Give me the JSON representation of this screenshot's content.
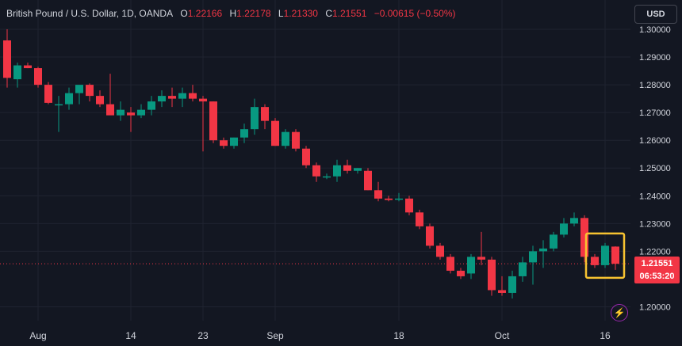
{
  "legend": {
    "symbol": "British Pound / U.S. Dollar, 1D, OANDA",
    "open_label": "O",
    "open": "1.22166",
    "high_label": "H",
    "high": "1.22178",
    "low_label": "L",
    "low": "1.21330",
    "close_label": "C",
    "close": "1.21551",
    "change": "−0.00615 (−0.50%)"
  },
  "currency_button": "USD",
  "price_tag": {
    "price": "1.21551",
    "countdown": "06:53:20"
  },
  "colors": {
    "up": "#089981",
    "down": "#f23645",
    "highlight": "#f7c331",
    "background": "#131722",
    "grid": "#1f2330"
  },
  "icons": {
    "alerts": "lightning-bolt-icon"
  },
  "chart_data": {
    "type": "candlestick",
    "title": "British Pound / U.S. Dollar, 1D, OANDA",
    "ylim": [
      1.195,
      1.302
    ],
    "y_ticks": [
      "1.30000",
      "1.29000",
      "1.28000",
      "1.27000",
      "1.26000",
      "1.25000",
      "1.24000",
      "1.23000",
      "1.22000",
      "1.20000"
    ],
    "x_ticks": [
      {
        "label": "Aug",
        "index": 3
      },
      {
        "label": "14",
        "index": 12
      },
      {
        "label": "23",
        "index": 19
      },
      {
        "label": "Sep",
        "index": 26
      },
      {
        "label": "18",
        "index": 38
      },
      {
        "label": "Oct",
        "index": 48
      },
      {
        "label": "16",
        "index": 58
      }
    ],
    "last_price": 1.21551,
    "highlight_range": [
      57,
      59
    ],
    "candles": [
      [
        1.296,
        1.3,
        1.279,
        1.2825
      ],
      [
        1.282,
        1.288,
        1.279,
        1.287
      ],
      [
        1.287,
        1.288,
        1.286,
        1.286
      ],
      [
        1.286,
        1.2865,
        1.279,
        1.28
      ],
      [
        1.28,
        1.281,
        1.273,
        1.2735
      ],
      [
        1.273,
        1.276,
        1.263,
        1.273
      ],
      [
        1.273,
        1.279,
        1.271,
        1.277
      ],
      [
        1.277,
        1.279,
        1.273,
        1.28
      ],
      [
        1.28,
        1.2805,
        1.274,
        1.276
      ],
      [
        1.276,
        1.278,
        1.272,
        1.273
      ],
      [
        1.273,
        1.284,
        1.27,
        1.269
      ],
      [
        1.269,
        1.274,
        1.267,
        1.271
      ],
      [
        1.27,
        1.272,
        1.263,
        1.269
      ],
      [
        1.269,
        1.273,
        1.268,
        1.271
      ],
      [
        1.271,
        1.276,
        1.269,
        1.274
      ],
      [
        1.274,
        1.278,
        1.272,
        1.276
      ],
      [
        1.276,
        1.279,
        1.272,
        1.275
      ],
      [
        1.275,
        1.279,
        1.272,
        1.277
      ],
      [
        1.277,
        1.28,
        1.274,
        1.275
      ],
      [
        1.275,
        1.276,
        1.256,
        1.274
      ],
      [
        1.274,
        1.274,
        1.259,
        1.26
      ],
      [
        1.26,
        1.261,
        1.257,
        1.258
      ],
      [
        1.258,
        1.261,
        1.257,
        1.261
      ],
      [
        1.261,
        1.266,
        1.259,
        1.264
      ],
      [
        1.264,
        1.275,
        1.262,
        1.272
      ],
      [
        1.272,
        1.273,
        1.264,
        1.267
      ],
      [
        1.267,
        1.268,
        1.258,
        1.258
      ],
      [
        1.258,
        1.264,
        1.257,
        1.263
      ],
      [
        1.263,
        1.264,
        1.256,
        1.257
      ],
      [
        1.257,
        1.258,
        1.25,
        1.251
      ],
      [
        1.251,
        1.252,
        1.245,
        1.247
      ],
      [
        1.247,
        1.248,
        1.246,
        1.247
      ],
      [
        1.247,
        1.253,
        1.245,
        1.251
      ],
      [
        1.251,
        1.253,
        1.248,
        1.249
      ],
      [
        1.249,
        1.25,
        1.248,
        1.25
      ],
      [
        1.249,
        1.25,
        1.242,
        1.242
      ],
      [
        1.242,
        1.245,
        1.238,
        1.239
      ],
      [
        1.239,
        1.24,
        1.238,
        1.2385
      ],
      [
        1.239,
        1.241,
        1.238,
        1.239
      ],
      [
        1.239,
        1.24,
        1.233,
        1.234
      ],
      [
        1.234,
        1.235,
        1.228,
        1.229
      ],
      [
        1.229,
        1.23,
        1.221,
        1.222
      ],
      [
        1.222,
        1.223,
        1.217,
        1.218
      ],
      [
        1.218,
        1.219,
        1.212,
        1.213
      ],
      [
        1.213,
        1.214,
        1.21,
        1.211
      ],
      [
        1.212,
        1.219,
        1.21,
        1.218
      ],
      [
        1.218,
        1.227,
        1.215,
        1.217
      ],
      [
        1.217,
        1.218,
        1.204,
        1.206
      ],
      [
        1.206,
        1.211,
        1.204,
        1.205
      ],
      [
        1.205,
        1.213,
        1.203,
        1.211
      ],
      [
        1.211,
        1.218,
        1.209,
        1.216
      ],
      [
        1.216,
        1.222,
        1.208,
        1.22
      ],
      [
        1.22,
        1.224,
        1.214,
        1.221
      ],
      [
        1.221,
        1.227,
        1.22,
        1.226
      ],
      [
        1.226,
        1.232,
        1.225,
        1.23
      ],
      [
        1.23,
        1.234,
        1.229,
        1.232
      ],
      [
        1.232,
        1.233,
        1.216,
        1.218
      ],
      [
        1.218,
        1.219,
        1.214,
        1.215
      ],
      [
        1.215,
        1.223,
        1.214,
        1.222
      ],
      [
        1.2217,
        1.2218,
        1.2133,
        1.2155
      ]
    ]
  }
}
